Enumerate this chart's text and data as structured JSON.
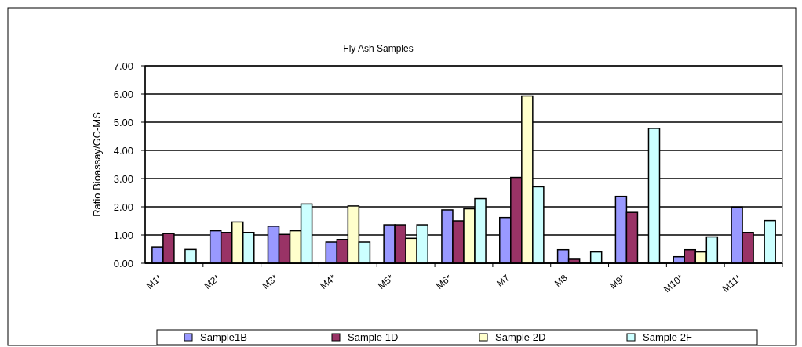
{
  "chart_data": {
    "type": "bar",
    "title": "Fly Ash Samples",
    "ylabel": "Ratio Bioassay/GC-MS",
    "categories": [
      "M1*",
      "M2*",
      "M3*",
      "M4*",
      "M5*",
      "M6*",
      "M7",
      "M8",
      "M9*",
      "M10*",
      "M11*"
    ],
    "series": [
      {
        "name": "Sample1B",
        "color": "#9999ff",
        "values": [
          0.58,
          1.15,
          1.31,
          0.75,
          1.36,
          1.89,
          1.62,
          0.48,
          2.37,
          0.23,
          1.99
        ]
      },
      {
        "name": "Sample 1D",
        "color": "#993366",
        "values": [
          1.05,
          1.09,
          1.02,
          0.84,
          1.36,
          1.5,
          3.04,
          0.14,
          1.8,
          0.48,
          1.09
        ]
      },
      {
        "name": "Sample 2D",
        "color": "#ffffcc",
        "values": [
          null,
          1.46,
          1.15,
          2.03,
          0.88,
          1.93,
          5.93,
          null,
          null,
          0.4,
          null
        ]
      },
      {
        "name": "Sample 2F",
        "color": "#ccffff",
        "values": [
          0.49,
          1.09,
          2.1,
          0.75,
          1.36,
          2.29,
          2.71,
          0.4,
          4.78,
          0.93,
          1.51
        ]
      }
    ],
    "ylim": [
      0,
      7
    ],
    "yticks": [
      {
        "value": 0,
        "label": "0.00"
      },
      {
        "value": 1,
        "label": "1.00"
      },
      {
        "value": 2,
        "label": "2.00"
      },
      {
        "value": 3,
        "label": "3.00"
      },
      {
        "value": 4,
        "label": "4.00"
      },
      {
        "value": 5,
        "label": "5.00"
      },
      {
        "value": 6,
        "label": "6.00"
      },
      {
        "value": 7,
        "label": "7.00"
      }
    ],
    "grid": "y",
    "legend": "bottom"
  }
}
